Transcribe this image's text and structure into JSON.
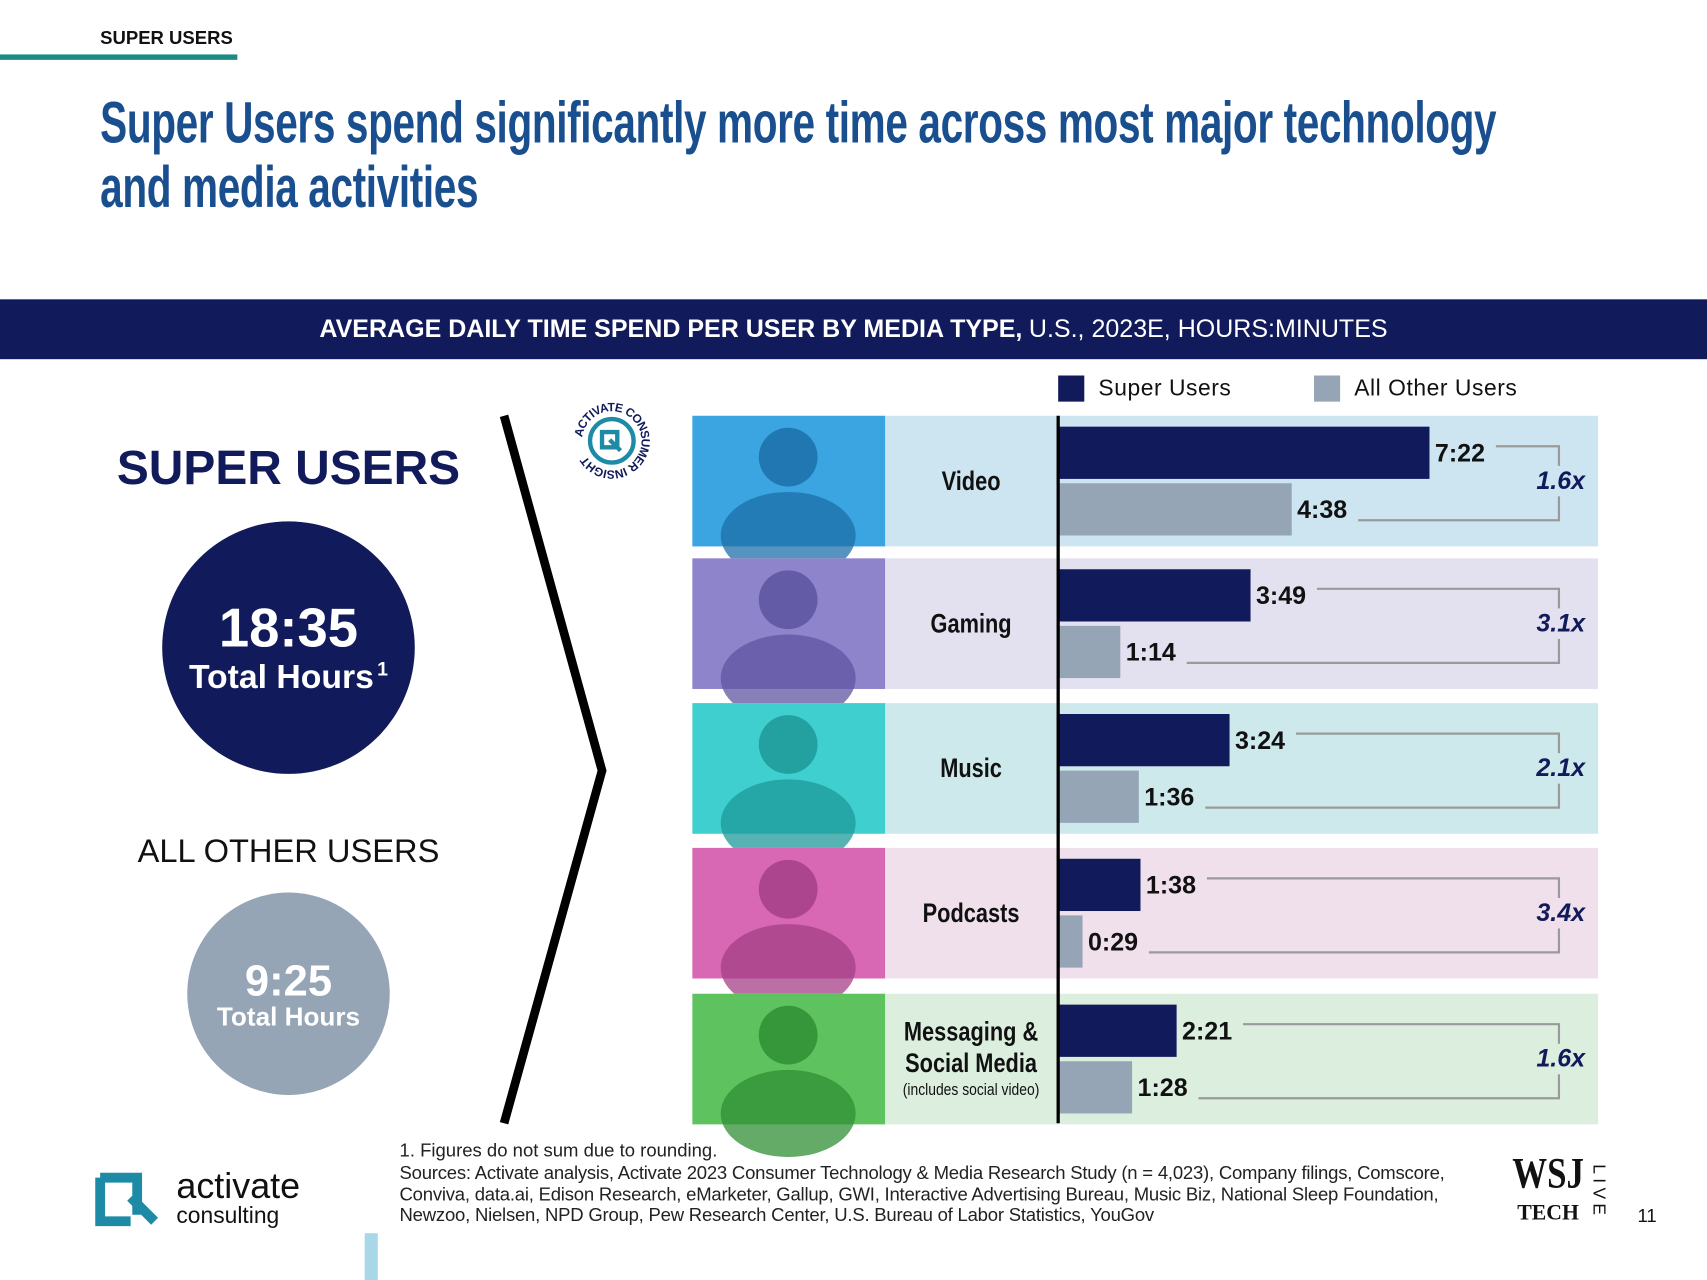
{
  "section": "SUPER USERS",
  "title": "Super Users spend significantly more time across most major technology and media activities",
  "chart_data": {
    "type": "bar",
    "orientation": "horizontal",
    "title": "AVERAGE DAILY TIME SPEND PER USER BY MEDIA TYPE,",
    "subtitle": "U.S., 2023E, HOURS:MINUTES",
    "categories": [
      "Video",
      "Gaming",
      "Music",
      "Podcasts",
      "Messaging & Social Media"
    ],
    "category_notes": [
      null,
      null,
      null,
      null,
      "(includes social video)"
    ],
    "series": [
      {
        "name": "Super Users",
        "color": "#111a5a",
        "values": [
          442,
          229,
          204,
          98,
          141
        ],
        "value_labels": [
          "7:22",
          "3:49",
          "3:24",
          "1:38",
          "2:21"
        ]
      },
      {
        "name": "All Other Users",
        "color": "#95a5b6",
        "values": [
          278,
          74,
          96,
          29,
          88
        ],
        "value_labels": [
          "4:38",
          "1:14",
          "1:36",
          "0:29",
          "1:28"
        ]
      }
    ],
    "ratio_labels": [
      "1.6x",
      "3.1x",
      "2.1x",
      "3.4x",
      "1.6x"
    ],
    "xlim": [
      0,
      600
    ]
  },
  "summary": {
    "super": {
      "heading": "SUPER USERS",
      "total": "18:35",
      "label": "Total Hours",
      "marker": "1"
    },
    "others": {
      "heading": "ALL OTHER USERS",
      "total": "9:25",
      "label": "Total Hours"
    }
  },
  "badge": "ACTIVATE CONSUMER INSIGHT",
  "footnote": "1. Figures do not sum due to rounding.",
  "sources": "Sources: Activate analysis, Activate 2023 Consumer Technology & Media Research Study (n = 4,023), Company filings, Comscore, Conviva, data.ai, Edison Research, eMarketer, Gallup, GWI, Interactive Advertising Bureau, Music Biz, National Sleep Foundation, Newzoo, Nielsen, NPD Group, Pew Research Center, U.S. Bureau of Labor Statistics, YouGov",
  "logo": {
    "name": "activate",
    "sub": "consulting"
  },
  "partner": {
    "name": "WSJ",
    "sub": "TECH",
    "side": "LIVE"
  },
  "page": 11
}
